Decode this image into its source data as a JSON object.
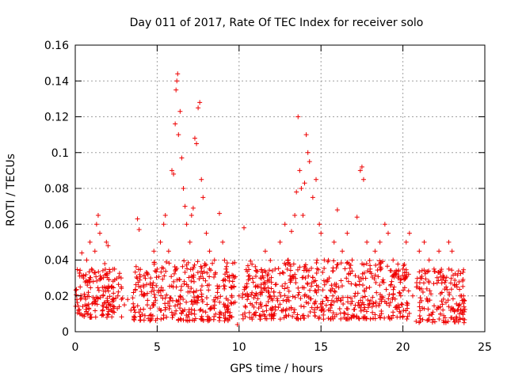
{
  "chart_data": {
    "type": "scatter",
    "title": "Day 011 of 2017, Rate Of TEC Index for receiver solo",
    "xlabel": "GPS time / hours",
    "ylabel": "ROTI / TECUs",
    "xlim": [
      0,
      25
    ],
    "ylim": [
      0,
      0.16
    ],
    "xticks": [
      0,
      5,
      10,
      15,
      20,
      25
    ],
    "yticks": [
      0,
      0.02,
      0.04,
      0.06,
      0.08,
      0.1,
      0.12,
      0.14,
      0.16
    ],
    "xtick_labels": [
      "0",
      "5",
      "10",
      "15",
      "20",
      "25"
    ],
    "ytick_labels": [
      "0",
      "0.02",
      "0.04",
      "0.06",
      "0.08",
      "0.1",
      "0.12",
      "0.14",
      "0.16"
    ],
    "grid": true,
    "marker": "+",
    "color": "#ee0000",
    "series": [
      {
        "name": "ROTI",
        "points": [
          [
            0.1,
            0.018
          ],
          [
            0.2,
            0.012
          ],
          [
            0.3,
            0.025
          ],
          [
            0.4,
            0.044
          ],
          [
            0.5,
            0.03
          ],
          [
            0.6,
            0.015
          ],
          [
            0.7,
            0.04
          ],
          [
            0.8,
            0.022
          ],
          [
            0.9,
            0.05
          ],
          [
            1.0,
            0.035
          ],
          [
            1.1,
            0.028
          ],
          [
            1.2,
            0.045
          ],
          [
            1.3,
            0.06
          ],
          [
            1.4,
            0.065
          ],
          [
            1.5,
            0.055
          ],
          [
            1.6,
            0.03
          ],
          [
            1.7,
            0.02
          ],
          [
            1.8,
            0.038
          ],
          [
            1.9,
            0.05
          ],
          [
            2.0,
            0.048
          ],
          [
            2.2,
            0.025
          ],
          [
            2.4,
            0.035
          ],
          [
            2.6,
            0.02
          ],
          [
            2.8,
            0.03
          ],
          [
            3.0,
            0.015
          ],
          [
            3.2,
            0.018
          ],
          [
            3.4,
            0.012
          ],
          [
            3.8,
            0.063
          ],
          [
            3.9,
            0.057
          ],
          [
            4.0,
            0.025
          ],
          [
            4.2,
            0.02
          ],
          [
            4.4,
            0.015
          ],
          [
            4.6,
            0.03
          ],
          [
            4.8,
            0.045
          ],
          [
            5.0,
            0.035
          ],
          [
            5.2,
            0.05
          ],
          [
            5.4,
            0.06
          ],
          [
            5.5,
            0.065
          ],
          [
            5.7,
            0.045
          ],
          [
            5.9,
            0.09
          ],
          [
            6.0,
            0.088
          ],
          [
            6.1,
            0.116
          ],
          [
            6.15,
            0.135
          ],
          [
            6.2,
            0.14
          ],
          [
            6.25,
            0.144
          ],
          [
            6.3,
            0.11
          ],
          [
            6.4,
            0.123
          ],
          [
            6.5,
            0.097
          ],
          [
            6.6,
            0.08
          ],
          [
            6.7,
            0.07
          ],
          [
            6.8,
            0.06
          ],
          [
            7.0,
            0.05
          ],
          [
            7.1,
            0.065
          ],
          [
            7.2,
            0.069
          ],
          [
            7.3,
            0.108
          ],
          [
            7.4,
            0.105
          ],
          [
            7.5,
            0.125
          ],
          [
            7.6,
            0.128
          ],
          [
            7.7,
            0.085
          ],
          [
            7.8,
            0.075
          ],
          [
            8.0,
            0.055
          ],
          [
            8.2,
            0.045
          ],
          [
            8.5,
            0.04
          ],
          [
            8.8,
            0.066
          ],
          [
            9.0,
            0.05
          ],
          [
            9.2,
            0.035
          ],
          [
            9.5,
            0.025
          ],
          [
            9.7,
            0.03
          ],
          [
            9.9,
            0.004
          ],
          [
            10.0,
            0.02
          ],
          [
            10.3,
            0.058
          ],
          [
            10.5,
            0.018
          ],
          [
            10.8,
            0.015
          ],
          [
            11.0,
            0.025
          ],
          [
            11.3,
            0.03
          ],
          [
            11.6,
            0.045
          ],
          [
            11.9,
            0.02
          ],
          [
            12.2,
            0.035
          ],
          [
            12.5,
            0.05
          ],
          [
            12.8,
            0.06
          ],
          [
            13.0,
            0.04
          ],
          [
            13.2,
            0.056
          ],
          [
            13.4,
            0.065
          ],
          [
            13.5,
            0.078
          ],
          [
            13.6,
            0.12
          ],
          [
            13.7,
            0.09
          ],
          [
            13.8,
            0.08
          ],
          [
            13.9,
            0.065
          ],
          [
            14.0,
            0.083
          ],
          [
            14.1,
            0.11
          ],
          [
            14.2,
            0.1
          ],
          [
            14.3,
            0.095
          ],
          [
            14.5,
            0.075
          ],
          [
            14.7,
            0.085
          ],
          [
            14.9,
            0.06
          ],
          [
            15.0,
            0.055
          ],
          [
            15.2,
            0.04
          ],
          [
            15.5,
            0.03
          ],
          [
            15.8,
            0.05
          ],
          [
            16.0,
            0.068
          ],
          [
            16.3,
            0.045
          ],
          [
            16.6,
            0.055
          ],
          [
            16.9,
            0.04
          ],
          [
            17.2,
            0.064
          ],
          [
            17.4,
            0.09
          ],
          [
            17.5,
            0.092
          ],
          [
            17.6,
            0.085
          ],
          [
            17.8,
            0.05
          ],
          [
            18.0,
            0.035
          ],
          [
            18.3,
            0.045
          ],
          [
            18.6,
            0.05
          ],
          [
            18.9,
            0.06
          ],
          [
            19.1,
            0.055
          ],
          [
            19.4,
            0.04
          ],
          [
            19.7,
            0.03
          ],
          [
            20.0,
            0.035
          ],
          [
            20.2,
            0.05
          ],
          [
            20.4,
            0.055
          ],
          [
            20.6,
            0.02
          ],
          [
            21.0,
            0.045
          ],
          [
            21.3,
            0.05
          ],
          [
            21.6,
            0.04
          ],
          [
            21.9,
            0.035
          ],
          [
            22.2,
            0.045
          ],
          [
            22.5,
            0.03
          ],
          [
            22.8,
            0.05
          ],
          [
            23.0,
            0.045
          ],
          [
            23.3,
            0.025
          ],
          [
            23.5,
            0.02
          ],
          [
            23.7,
            0.018
          ]
        ]
      }
    ],
    "bands": [
      {
        "x0": 0.0,
        "x1": 2.9,
        "y0": 0.008,
        "y1": 0.035
      },
      {
        "x0": 3.5,
        "x1": 9.8,
        "y0": 0.006,
        "y1": 0.04
      },
      {
        "x0": 10.2,
        "x1": 20.4,
        "y0": 0.007,
        "y1": 0.04
      },
      {
        "x0": 20.8,
        "x1": 23.8,
        "y0": 0.005,
        "y1": 0.035
      }
    ]
  }
}
